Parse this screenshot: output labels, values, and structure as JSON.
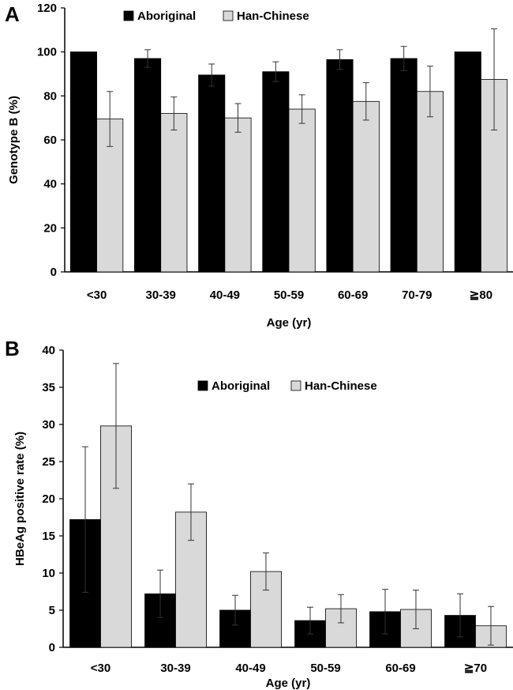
{
  "chart_data": [
    {
      "panel": "A",
      "type": "bar",
      "title": "",
      "xlabel": "Age (yr)",
      "ylabel": "Genotype B (%)",
      "ylim": [
        0,
        120
      ],
      "yticks": [
        0,
        20,
        40,
        60,
        80,
        100,
        120
      ],
      "categories": [
        "<30",
        "30-39",
        "40-49",
        "50-59",
        "60-69",
        "70-79",
        "≧80"
      ],
      "legend": "top-left",
      "grid": false,
      "series": [
        {
          "name": "Aboriginal",
          "color": "#000000",
          "values": [
            100,
            97,
            89.5,
            91,
            96.5,
            97,
            100
          ],
          "err": [
            0,
            4,
            5,
            4.5,
            4.5,
            5.5,
            0
          ]
        },
        {
          "name": "Han-Chinese",
          "color": "#d9d9d9",
          "values": [
            69.5,
            72,
            70,
            74,
            77.5,
            82,
            87.5
          ],
          "err": [
            12.5,
            7.5,
            6.5,
            6.5,
            8.5,
            11.5,
            23
          ]
        }
      ]
    },
    {
      "panel": "B",
      "type": "bar",
      "title": "",
      "xlabel": "Age (yr)",
      "ylabel": "HBeAg positive rate (%)",
      "ylim": [
        0,
        40
      ],
      "yticks": [
        0,
        5,
        10,
        15,
        20,
        25,
        30,
        35,
        40
      ],
      "categories": [
        "<30",
        "30-39",
        "40-49",
        "50-59",
        "60-69",
        "≧70"
      ],
      "legend": "top-center",
      "grid": false,
      "series": [
        {
          "name": "Aboriginal",
          "color": "#000000",
          "values": [
            17.2,
            7.2,
            5.0,
            3.6,
            4.8,
            4.3
          ],
          "err": [
            9.8,
            3.2,
            2.0,
            1.8,
            3.0,
            2.9
          ]
        },
        {
          "name": "Han-Chinese",
          "color": "#d9d9d9",
          "values": [
            29.8,
            18.2,
            10.2,
            5.2,
            5.1,
            2.9
          ],
          "err": [
            8.4,
            3.8,
            2.5,
            1.9,
            2.6,
            2.6
          ]
        }
      ]
    }
  ]
}
